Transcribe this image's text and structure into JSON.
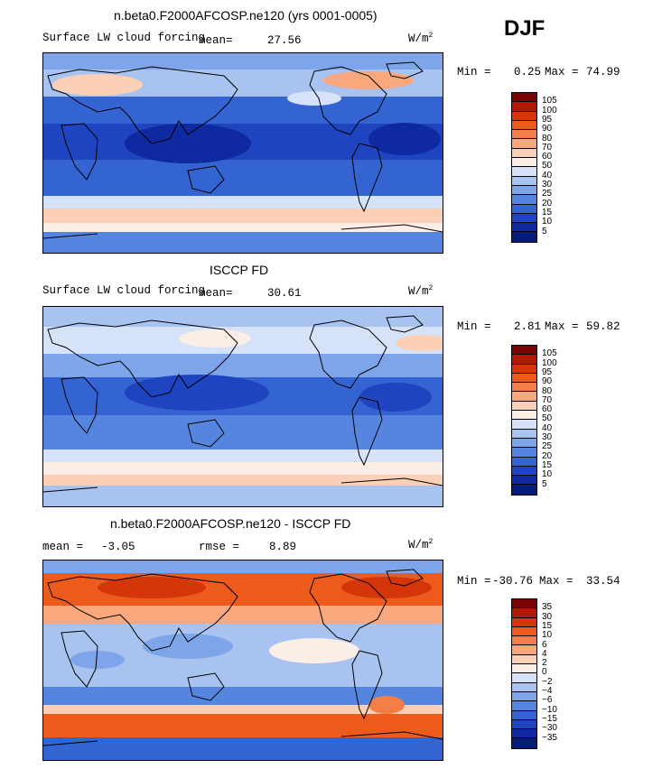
{
  "season": "DJF",
  "units_base": "W/m",
  "units_exp": "2",
  "panels": [
    {
      "title": "n.beta0.F2000AFCOSP.ne120 (yrs 0001-0005)",
      "subtitle": "Surface LW cloud forcing",
      "mean_label": "mean=",
      "mean_value": "27.56",
      "min_label": "Min =",
      "min_value": "0.25",
      "max_label": "Max =",
      "max_value": "74.99",
      "palette": "abs"
    },
    {
      "title": "ISCCP FD",
      "subtitle": "Surface LW cloud forcing",
      "mean_label": "mean=",
      "mean_value": "30.61",
      "min_label": "Min =",
      "min_value": "2.81",
      "max_label": "Max =",
      "max_value": "59.82",
      "palette": "abs"
    },
    {
      "title": "n.beta0.F2000AFCOSP.ne120 - ISCCP FD",
      "mean_label": "mean =",
      "mean_value": "-3.05",
      "rmse_label": "rmse =",
      "rmse_value": "8.89",
      "min_label": "Min =",
      "min_value": "-30.76",
      "max_label": "Max =",
      "max_value": "33.54",
      "palette": "diff"
    }
  ],
  "colorbars": {
    "abs": {
      "labels": [
        "105",
        "100",
        "95",
        "90",
        "80",
        "70",
        "60",
        "50",
        "40",
        "30",
        "25",
        "20",
        "15",
        "10",
        "5"
      ],
      "colors": [
        "#7a0403",
        "#b01a04",
        "#d43509",
        "#ec5a1c",
        "#f47e48",
        "#f9a87e",
        "#fbd0b6",
        "#fbeee6",
        "#d6e2f7",
        "#a9c3f0",
        "#7ea5ea",
        "#5685e0",
        "#3463d2",
        "#1f44c0",
        "#0f2aa1",
        "#041c7c"
      ]
    },
    "diff": {
      "labels": [
        "35",
        "30",
        "15",
        "10",
        "6",
        "4",
        "2",
        "0",
        "−2",
        "−4",
        "−6",
        "−10",
        "−15",
        "−30",
        "−35"
      ],
      "colors": [
        "#7a0403",
        "#b01a04",
        "#d43509",
        "#ec5a1c",
        "#f47e48",
        "#f9a87e",
        "#fbd0b6",
        "#fbeee6",
        "#d6e2f7",
        "#a9c3f0",
        "#7ea5ea",
        "#5685e0",
        "#3463d2",
        "#1f44c0",
        "#0f2aa1",
        "#041c7c"
      ]
    }
  }
}
